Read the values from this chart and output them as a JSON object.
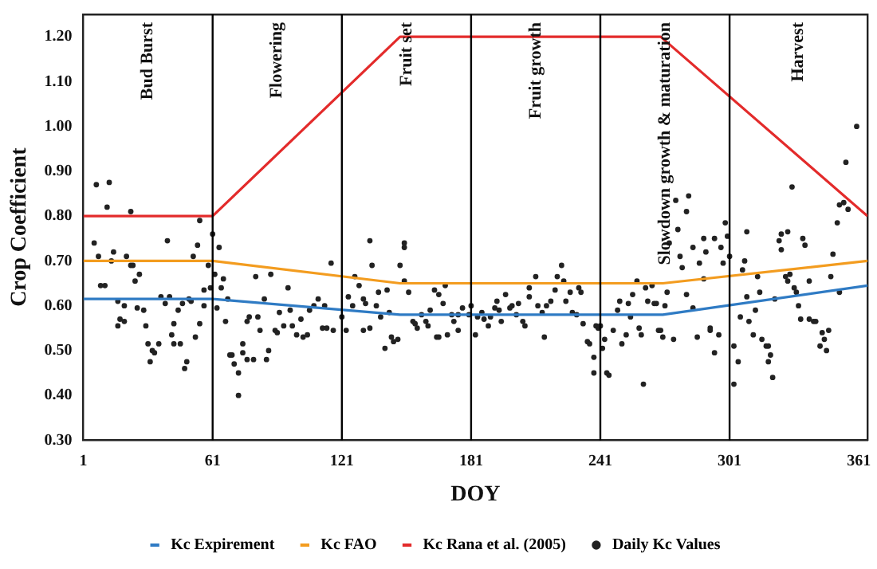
{
  "chart_data": {
    "type": "line",
    "xlabel": "DOY",
    "ylabel": "Crop Coefficient",
    "xlim": [
      1,
      365
    ],
    "xticks": [
      1,
      61,
      121,
      181,
      241,
      301,
      361
    ],
    "ylim": [
      0.3,
      1.25
    ],
    "yticks": [
      {
        "value": 0.3,
        "label": "0.30"
      },
      {
        "value": 0.4,
        "label": "0.40"
      },
      {
        "value": 0.5,
        "label": "0.50"
      },
      {
        "value": 0.6,
        "label": "0.60"
      },
      {
        "value": 0.7,
        "label": "0.70"
      },
      {
        "value": 0.8,
        "label": "0.80"
      },
      {
        "value": 0.9,
        "label": "0.90"
      },
      {
        "value": 1.0,
        "label": "1.00"
      },
      {
        "value": 1.1,
        "label": "1.10"
      },
      {
        "value": 1.2,
        "label": "1.20"
      }
    ],
    "grid": false,
    "legend": "bottom",
    "series": [
      {
        "name": "Kc Expirement",
        "color": "#2f7bc4",
        "marker": "none",
        "x": [
          1,
          61,
          148,
          270,
          365
        ],
        "values": [
          0.615,
          0.615,
          0.58,
          0.58,
          0.645
        ]
      },
      {
        "name": "Kc FAO",
        "color": "#f39c1f",
        "marker": "none",
        "x": [
          1,
          61,
          148,
          270,
          365
        ],
        "values": [
          0.7,
          0.7,
          0.65,
          0.65,
          0.7
        ]
      },
      {
        "name": "Kc Rana et al. (2005)",
        "color": "#e32b2b",
        "marker": "none",
        "x": [
          1,
          61,
          148,
          269,
          365
        ],
        "values": [
          0.8,
          0.8,
          1.2,
          1.2,
          0.8
        ]
      },
      {
        "name": "Daily Kc Values",
        "type": "scatter",
        "color": "#222222",
        "marker": "circle",
        "x": [
          7,
          13,
          12,
          23,
          6,
          8,
          15,
          14,
          21,
          9,
          11,
          23,
          24,
          27,
          25,
          17,
          20,
          18,
          17,
          20,
          26,
          29,
          30,
          31,
          32,
          33,
          34,
          36,
          37,
          39,
          40,
          41,
          42,
          43,
          45,
          43,
          46,
          47,
          48,
          49,
          50,
          51,
          52,
          53,
          54,
          55,
          55,
          57,
          57,
          59,
          60,
          61,
          62,
          63,
          64,
          65,
          66,
          68,
          67,
          69,
          70,
          71,
          73,
          73,
          75,
          75,
          77,
          78,
          77,
          80,
          81,
          82,
          83,
          85,
          86,
          87,
          88,
          90,
          91,
          92,
          94,
          96,
          97,
          98,
          100,
          102,
          103,
          105,
          106,
          108,
          110,
          112,
          114,
          116,
          113,
          117,
          121,
          123,
          124,
          126,
          127,
          129,
          131,
          131,
          132,
          134,
          134,
          135,
          137,
          138,
          139,
          141,
          142,
          143,
          144,
          145,
          147,
          148,
          150,
          150,
          150,
          152,
          154,
          155,
          156,
          158,
          160,
          161,
          162,
          164,
          165,
          166,
          166,
          168,
          169,
          170,
          172,
          173,
          175,
          175,
          177,
          180,
          181,
          183,
          184,
          186,
          187,
          189,
          190,
          192,
          193,
          194,
          195,
          197,
          199,
          200,
          202,
          203,
          205,
          206,
          208,
          208,
          211,
          212,
          214,
          215,
          216,
          218,
          220,
          221,
          223,
          224,
          225,
          227,
          228,
          230,
          231,
          232,
          233,
          235,
          236,
          238,
          238,
          239,
          240,
          242,
          244,
          241,
          243,
          245,
          247,
          249,
          250,
          251,
          253,
          254,
          255,
          256,
          258,
          259,
          260,
          261,
          262,
          263,
          265,
          266,
          267,
          268,
          269,
          270,
          271,
          272,
          273,
          275,
          276,
          277,
          278,
          279,
          281,
          281,
          282,
          284,
          284,
          286,
          287,
          289,
          289,
          290,
          292,
          292,
          294,
          294,
          296,
          297,
          298,
          299,
          300,
          301,
          303,
          303,
          305,
          306,
          307,
          308,
          309,
          309,
          310,
          312,
          313,
          314,
          315,
          316,
          318,
          319,
          319,
          320,
          321,
          322,
          324,
          325,
          325,
          327,
          328,
          328,
          329,
          330,
          331,
          332,
          333,
          334,
          335,
          336,
          338,
          338,
          340,
          341,
          343,
          344,
          345,
          346,
          347,
          348,
          349,
          351,
          352,
          352,
          354,
          355,
          356,
          360
        ],
        "values": [
          0.87,
          0.875,
          0.82,
          0.81,
          0.74,
          0.71,
          0.72,
          0.7,
          0.71,
          0.645,
          0.645,
          0.69,
          0.69,
          0.67,
          0.655,
          0.61,
          0.6,
          0.57,
          0.555,
          0.565,
          0.595,
          0.59,
          0.555,
          0.515,
          0.475,
          0.5,
          0.495,
          0.515,
          0.62,
          0.605,
          0.745,
          0.62,
          0.535,
          0.56,
          0.59,
          0.515,
          0.515,
          0.605,
          0.46,
          0.475,
          0.615,
          0.61,
          0.71,
          0.53,
          0.735,
          0.79,
          0.56,
          0.635,
          0.6,
          0.69,
          0.64,
          0.76,
          0.67,
          0.595,
          0.73,
          0.64,
          0.66,
          0.615,
          0.565,
          0.49,
          0.49,
          0.47,
          0.45,
          0.4,
          0.495,
          0.515,
          0.565,
          0.575,
          0.48,
          0.48,
          0.665,
          0.575,
          0.545,
          0.615,
          0.48,
          0.5,
          0.67,
          0.545,
          0.54,
          0.585,
          0.555,
          0.64,
          0.59,
          0.555,
          0.535,
          0.57,
          0.53,
          0.535,
          0.59,
          0.6,
          0.615,
          0.55,
          0.55,
          0.695,
          0.6,
          0.545,
          0.575,
          0.545,
          0.62,
          0.6,
          0.665,
          0.645,
          0.615,
          0.545,
          0.605,
          0.55,
          0.745,
          0.69,
          0.6,
          0.63,
          0.575,
          0.505,
          0.635,
          0.585,
          0.53,
          0.52,
          0.525,
          0.69,
          0.73,
          0.74,
          0.655,
          0.63,
          0.565,
          0.56,
          0.55,
          0.58,
          0.565,
          0.555,
          0.59,
          0.635,
          0.53,
          0.53,
          0.625,
          0.605,
          0.645,
          0.535,
          0.58,
          0.565,
          0.58,
          0.545,
          0.595,
          0.58,
          0.6,
          0.535,
          0.575,
          0.585,
          0.57,
          0.555,
          0.575,
          0.595,
          0.61,
          0.59,
          0.565,
          0.625,
          0.595,
          0.6,
          0.58,
          0.605,
          0.565,
          0.555,
          0.64,
          0.62,
          0.665,
          0.6,
          0.585,
          0.53,
          0.6,
          0.61,
          0.635,
          0.665,
          0.69,
          0.655,
          0.61,
          0.63,
          0.585,
          0.58,
          0.64,
          0.63,
          0.56,
          0.52,
          0.515,
          0.485,
          0.45,
          0.555,
          0.55,
          0.505,
          0.45,
          0.555,
          0.525,
          0.445,
          0.545,
          0.59,
          0.61,
          0.515,
          0.535,
          0.605,
          0.575,
          0.625,
          0.655,
          0.55,
          0.535,
          0.425,
          0.64,
          0.61,
          0.645,
          0.605,
          0.605,
          0.545,
          0.545,
          0.53,
          0.6,
          0.63,
          0.74,
          0.525,
          0.835,
          0.77,
          0.71,
          0.685,
          0.625,
          0.81,
          0.845,
          0.595,
          0.73,
          0.53,
          0.695,
          0.75,
          0.66,
          0.72,
          0.55,
          0.545,
          0.495,
          0.75,
          0.535,
          0.73,
          0.695,
          0.785,
          0.755,
          0.71,
          0.51,
          0.425,
          0.475,
          0.575,
          0.68,
          0.7,
          0.62,
          0.765,
          0.565,
          0.535,
          0.59,
          0.665,
          0.63,
          0.525,
          0.51,
          0.51,
          0.475,
          0.49,
          0.44,
          0.615,
          0.745,
          0.76,
          0.725,
          0.665,
          0.655,
          0.765,
          0.67,
          0.865,
          0.64,
          0.63,
          0.6,
          0.57,
          0.75,
          0.735,
          0.655,
          0.57,
          0.565,
          0.565,
          0.51,
          0.54,
          0.525,
          0.5,
          0.545,
          0.665,
          0.715,
          0.785,
          0.63,
          0.825,
          0.83,
          0.92,
          0.815,
          1.0
        ]
      }
    ],
    "ref_lines": [
      {
        "axis": "x",
        "value": 61,
        "color": "#000000"
      },
      {
        "axis": "x",
        "value": 121,
        "color": "#000000"
      },
      {
        "axis": "x",
        "value": 181,
        "color": "#000000"
      },
      {
        "axis": "x",
        "value": 241,
        "color": "#000000"
      },
      {
        "axis": "x",
        "value": 301,
        "color": "#000000"
      }
    ],
    "annotations": [
      "Bud Burst",
      "Flowering",
      "Fruit set",
      "Fruit growth",
      "Slowdown growth & maturation",
      "Harvest"
    ]
  }
}
